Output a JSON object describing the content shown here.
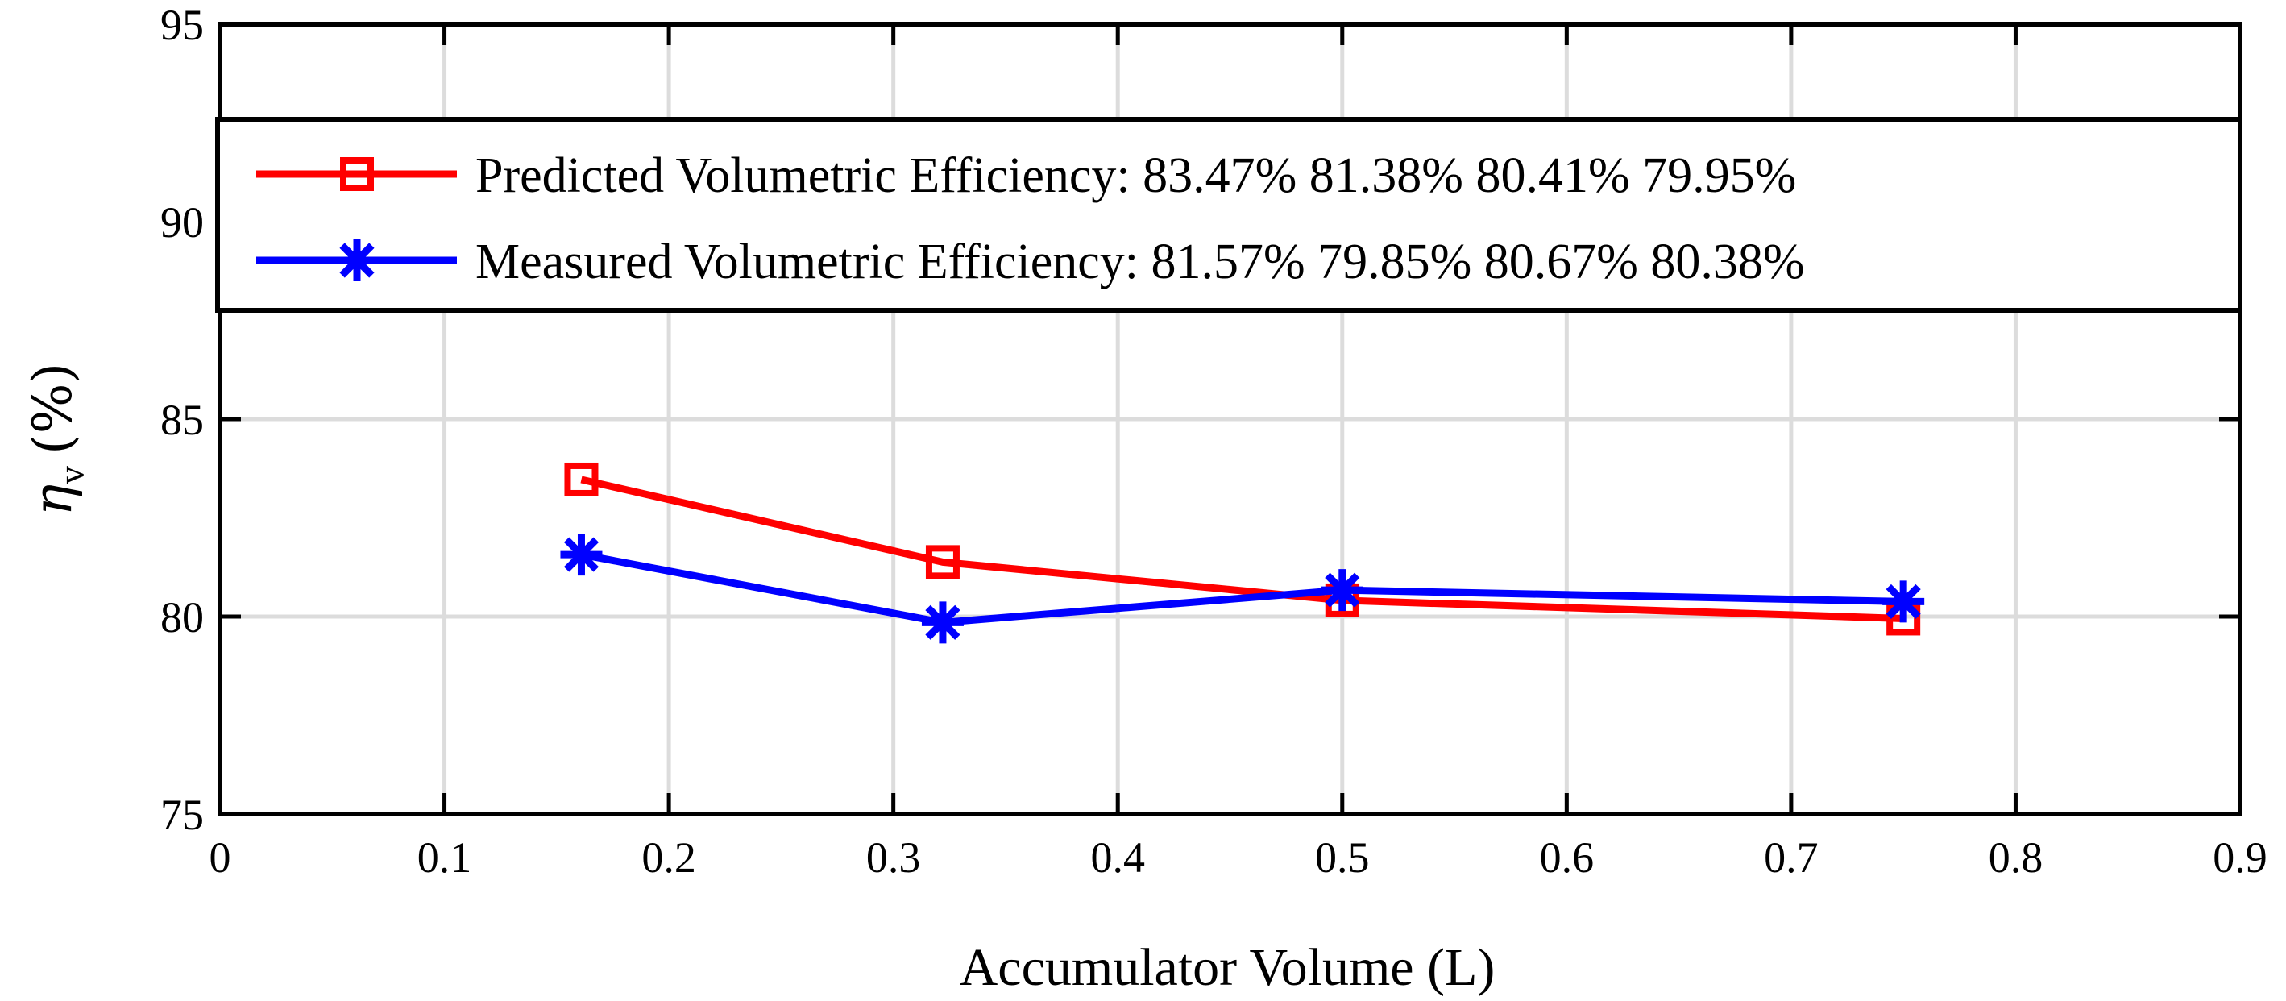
{
  "chart_data": {
    "type": "line",
    "title": "",
    "xlabel": "Accumulator Volume (L)",
    "ylabel_symbol": "η",
    "ylabel_subscript": "v",
    "ylabel_unit": "(%)",
    "xlim": [
      0,
      0.9
    ],
    "ylim": [
      75,
      95
    ],
    "xticks": [
      0,
      0.1,
      0.2,
      0.3,
      0.4,
      0.5,
      0.6,
      0.7,
      0.8,
      0.9
    ],
    "xtick_labels": [
      "0",
      "0.1",
      "0.2",
      "0.3",
      "0.4",
      "0.5",
      "0.6",
      "0.7",
      "0.8",
      "0.9"
    ],
    "yticks": [
      75,
      80,
      85,
      90,
      95
    ],
    "ytick_labels": [
      "75",
      "80",
      "85",
      "90",
      "95"
    ],
    "grid": true,
    "legend_position": "top",
    "series": [
      {
        "name": "Predicted Volumetric Efficiency: 83.47% 81.38% 80.41% 79.95%",
        "color": "#ff0000",
        "marker": "square",
        "x": [
          0.161,
          0.322,
          0.5,
          0.75
        ],
        "y": [
          83.47,
          81.38,
          80.41,
          79.95
        ]
      },
      {
        "name": "Measured Volumetric Efficiency: 81.57% 79.85% 80.67% 80.38%",
        "color": "#0000ff",
        "marker": "asterisk",
        "x": [
          0.161,
          0.322,
          0.5,
          0.75
        ],
        "y": [
          81.57,
          79.85,
          80.67,
          80.38
        ]
      }
    ]
  }
}
